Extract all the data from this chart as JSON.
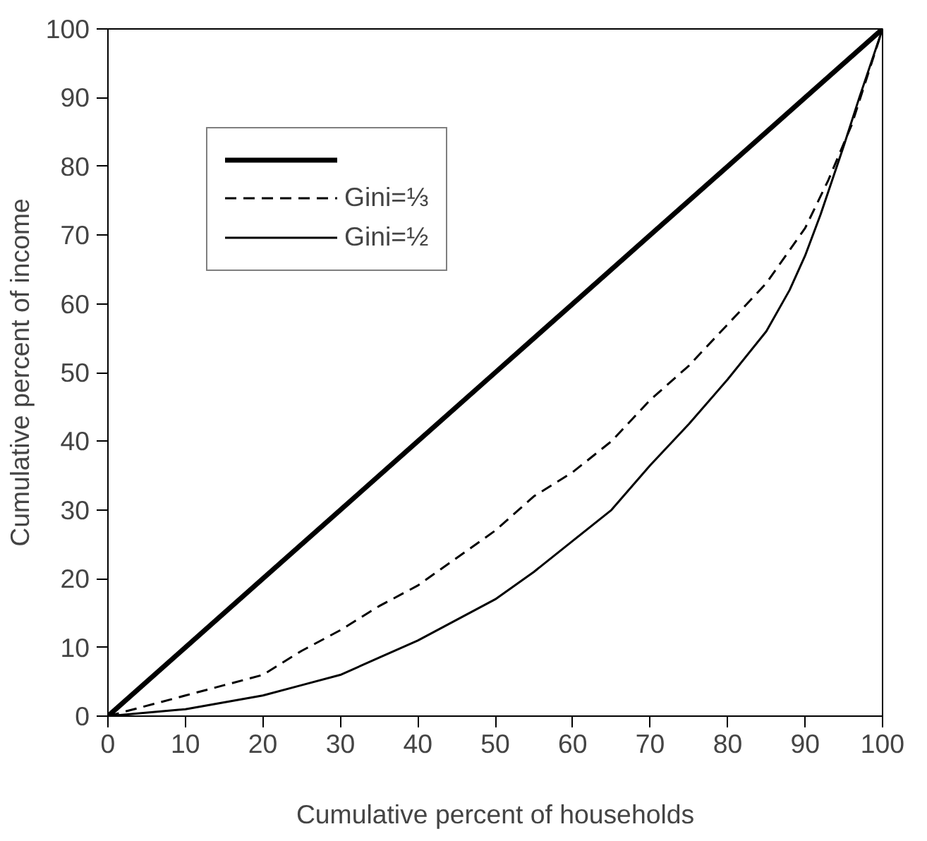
{
  "chart_data": {
    "type": "line",
    "xlabel": "Cumulative percent of households",
    "ylabel": "Cumulative percent of income",
    "xlim": [
      0,
      100
    ],
    "ylim": [
      0,
      100
    ],
    "xticks": [
      0,
      10,
      20,
      30,
      40,
      50,
      60,
      70,
      80,
      90,
      100
    ],
    "yticks": [
      0,
      10,
      20,
      30,
      40,
      50,
      60,
      70,
      80,
      90,
      100
    ],
    "grid": false,
    "legend": "top left",
    "marker": "none",
    "series": [
      {
        "color": "#000000",
        "line_style": "solid",
        "x": [
          0,
          10,
          20,
          30,
          40,
          50,
          60,
          70,
          80,
          90,
          100
        ],
        "values": [
          0,
          10,
          20,
          30,
          40,
          50,
          60,
          70,
          80,
          90,
          100
        ]
      },
      {
        "name": "Gini=⅓",
        "color": "#000000",
        "line_style": "dashed",
        "x": [
          0,
          5,
          10,
          15,
          20,
          25,
          30,
          35,
          40,
          45,
          50,
          55,
          60,
          65,
          70,
          75,
          80,
          85,
          90,
          93,
          96,
          100
        ],
        "values": [
          0,
          1.5,
          3,
          4.5,
          6,
          9.5,
          12.5,
          16,
          19,
          23,
          27,
          32,
          35.5,
          40,
          46,
          51,
          57,
          63,
          71,
          78,
          86,
          100
        ]
      },
      {
        "name": "Gini=½",
        "color": "#000000",
        "line_style": "solid",
        "x": [
          0,
          10,
          15,
          20,
          25,
          30,
          35,
          40,
          45,
          50,
          55,
          60,
          65,
          70,
          75,
          80,
          85,
          88,
          90,
          92,
          95,
          97,
          100
        ],
        "values": [
          0,
          1,
          2,
          3,
          4.5,
          6,
          8.5,
          11,
          14,
          17,
          21,
          25.5,
          30,
          36.5,
          42.5,
          49,
          56,
          62,
          67,
          73,
          83,
          90,
          100
        ]
      }
    ]
  }
}
